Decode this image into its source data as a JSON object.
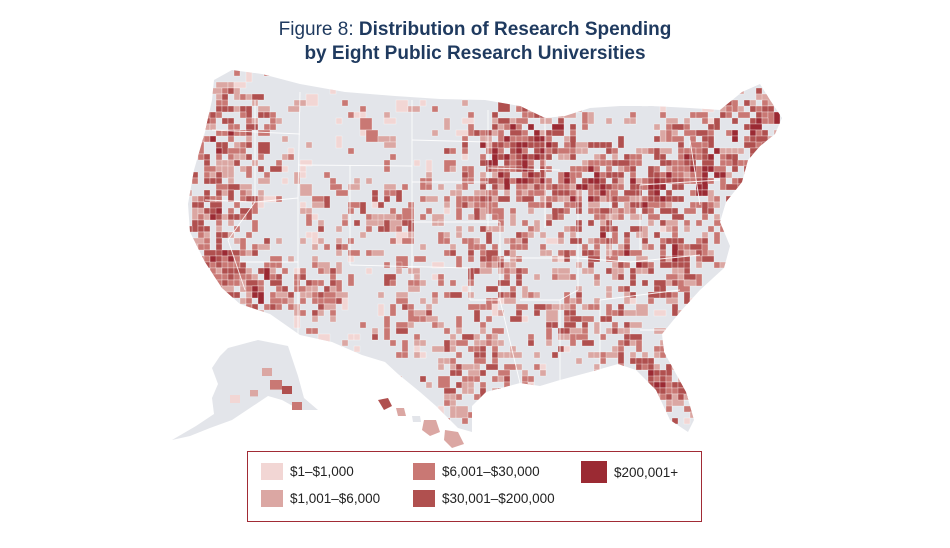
{
  "title": {
    "prefix": "Figure 8: ",
    "line1_bold": "Distribution of Research Spending",
    "line2_bold": "by Eight Public Research Universities"
  },
  "colors": {
    "land": "#e3e5ea",
    "border": "#ffffff",
    "c1": "#f2d6d4",
    "c2": "#dba7a3",
    "c3": "#c97874",
    "c4": "#b0504f",
    "c5": "#9b2a33"
  },
  "legend": [
    {
      "label": "$1–$1,000",
      "color": "#f2d6d4"
    },
    {
      "label": "$1,001–$6,000",
      "color": "#dba7a3"
    },
    {
      "label": "$6,001–$30,000",
      "color": "#c97874"
    },
    {
      "label": "$30,001–$200,000",
      "color": "#b0504f"
    },
    {
      "label": "$200,001+",
      "color": "#9b2a33"
    }
  ]
}
